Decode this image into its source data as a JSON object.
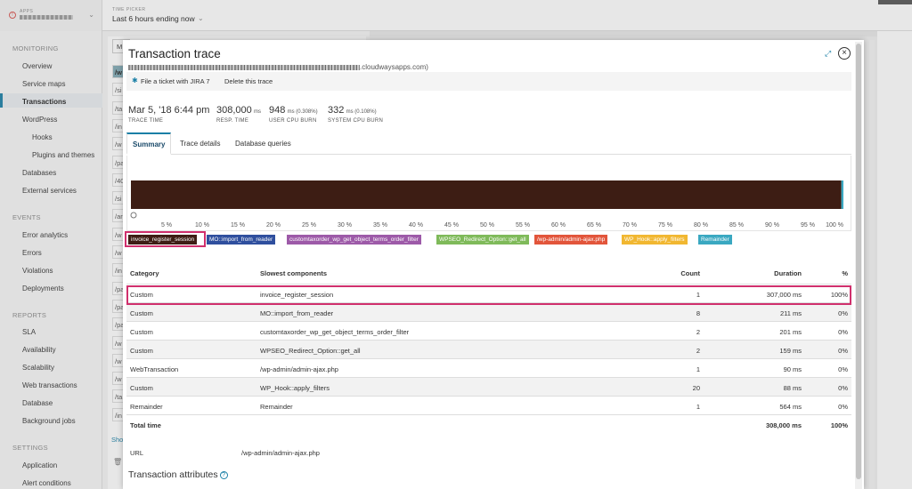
{
  "topbar": {
    "apps_label": "APPS",
    "timepicker_label": "TIME PICKER",
    "timepicker_value": "Last 6 hours ending now"
  },
  "sidebar": {
    "monitoring": "MONITORING",
    "overview": "Overview",
    "service_maps": "Service maps",
    "transactions": "Transactions",
    "wordpress": "WordPress",
    "hooks": "Hooks",
    "plugins_themes": "Plugins and themes",
    "databases": "Databases",
    "external_services": "External services",
    "events": "EVENTS",
    "error_analytics": "Error analytics",
    "errors": "Errors",
    "violations": "Violations",
    "deployments": "Deployments",
    "reports": "REPORTS",
    "sla": "SLA",
    "availability": "Availability",
    "scalability": "Scalability",
    "web_transactions": "Web transactions",
    "database": "Database",
    "background_jobs": "Background jobs",
    "settings": "SETTINGS",
    "application": "Application",
    "alert_conditions": "Alert conditions"
  },
  "bg": {
    "search_prefix": "M",
    "rows": [
      "/w",
      "/si",
      "/ta",
      "/in",
      "/w",
      "/pa",
      "/40",
      "/si",
      "/ar",
      "/w",
      "/w",
      "/in",
      "/pa",
      "/pa",
      "/pa",
      "/w",
      "/w",
      "/w",
      "/ta",
      "/in"
    ],
    "show_more": "Sho"
  },
  "modal": {
    "title": "Transaction trace",
    "url_suffix": ".cloudwaysapps.com)",
    "jira_button": "File a ticket with JIRA 7",
    "delete_button": "Delete this trace",
    "stats": {
      "trace_time": "Mar 5, '18 6:44 pm",
      "trace_time_label": "TRACE TIME",
      "resp_time": "308,000",
      "resp_time_unit": "ms",
      "resp_time_label": "RESP. TIME",
      "user_cpu": "948",
      "user_cpu_unit": "ms (0.308%)",
      "user_cpu_label": "USER CPU BURN",
      "system_cpu": "332",
      "system_cpu_unit": "ms (0.108%)",
      "system_cpu_label": "SYSTEM CPU BURN"
    },
    "tabs": {
      "summary": "Summary",
      "trace_details": "Trace details",
      "database_queries": "Database queries"
    },
    "legend": [
      {
        "label": "invoice_register_session",
        "color": "#3d1d14"
      },
      {
        "label": "MO::import_from_reader",
        "color": "#2f4f9e"
      },
      {
        "label": "customtaxorder_wp_get_object_terms_order_filter",
        "color": "#9d5aa8"
      },
      {
        "label": "WPSEO_Redirect_Option::get_all",
        "color": "#7fba5a"
      },
      {
        "label": "/wp-admin/admin-ajax.php",
        "color": "#e2553b"
      },
      {
        "label": "WP_Hook::apply_filters",
        "color": "#f1b731"
      },
      {
        "label": "Remainder",
        "color": "#3aa8c1"
      }
    ],
    "table": {
      "headers": {
        "category": "Category",
        "slowest": "Slowest components",
        "count": "Count",
        "duration": "Duration",
        "percent": "%"
      },
      "rows": [
        {
          "category": "Custom",
          "component": "invoice_register_session",
          "count": "1",
          "duration": "307,000 ms",
          "pct": "100%"
        },
        {
          "category": "Custom",
          "component": "MO::import_from_reader",
          "count": "8",
          "duration": "211 ms",
          "pct": "0%"
        },
        {
          "category": "Custom",
          "component": "customtaxorder_wp_get_object_terms_order_filter",
          "count": "2",
          "duration": "201 ms",
          "pct": "0%"
        },
        {
          "category": "Custom",
          "component": "WPSEO_Redirect_Option::get_all",
          "count": "2",
          "duration": "159 ms",
          "pct": "0%"
        },
        {
          "category": "WebTransaction",
          "component": "/wp-admin/admin-ajax.php",
          "count": "1",
          "duration": "90 ms",
          "pct": "0%"
        },
        {
          "category": "Custom",
          "component": "WP_Hook::apply_filters",
          "count": "20",
          "duration": "88 ms",
          "pct": "0%"
        },
        {
          "category": "Remainder",
          "component": "Remainder",
          "count": "1",
          "duration": "564 ms",
          "pct": "0%"
        }
      ],
      "total": {
        "label": "Total time",
        "duration": "308,000 ms",
        "pct": "100%"
      }
    },
    "url_label": "URL",
    "url_value": "/wp-admin/admin-ajax.php",
    "attributes_title": "Transaction attributes"
  },
  "chart_data": {
    "type": "bar",
    "orientation": "horizontal-stacked",
    "x_ticks": [
      "0",
      "5 %",
      "10 %",
      "15 %",
      "20 %",
      "25 %",
      "30 %",
      "35 %",
      "40 %",
      "45 %",
      "50 %",
      "55 %",
      "60 %",
      "65 %",
      "70 %",
      "75 %",
      "80 %",
      "85 %",
      "90 %",
      "95 %",
      "100 %"
    ],
    "xlim": [
      0,
      100
    ],
    "series": [
      {
        "name": "invoice_register_session",
        "value": 99.7,
        "color": "#3d1d14"
      },
      {
        "name": "Remainder",
        "value": 0.3,
        "color": "#3aa8c1"
      }
    ]
  }
}
